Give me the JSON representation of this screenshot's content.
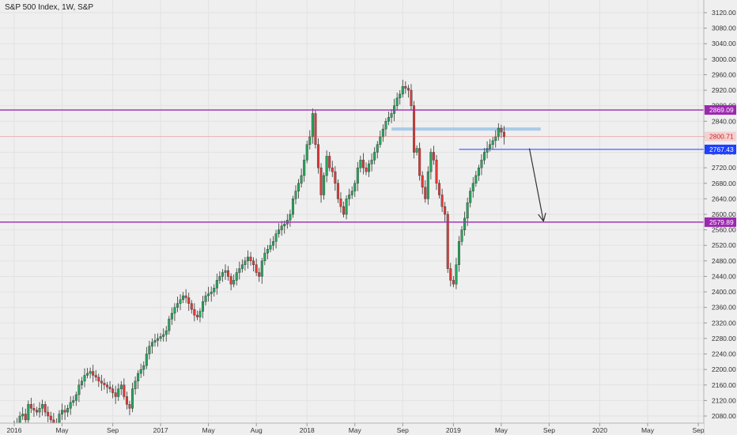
{
  "header": {
    "title": "S&P 500 Index, 1W, S&P"
  },
  "chart_data": {
    "type": "candlestick",
    "title": "S&P 500 Index, 1W, S&P",
    "ylim": [
      2060,
      3140
    ],
    "y_ticks": [
      "3120.00",
      "3080.00",
      "3040.00",
      "3000.00",
      "2960.00",
      "2920.00",
      "2880.00",
      "2840.00",
      "2800.00",
      "2760.00",
      "2720.00",
      "2680.00",
      "2640.00",
      "2600.00",
      "2560.00",
      "2520.00",
      "2480.00",
      "2440.00",
      "2400.00",
      "2360.00",
      "2320.00",
      "2280.00",
      "2240.00",
      "2200.00",
      "2160.00",
      "2120.00",
      "2080.00"
    ],
    "x_ticks": [
      {
        "label": "2016",
        "week": 0
      },
      {
        "label": "May",
        "week": 17
      },
      {
        "label": "Sep",
        "week": 35
      },
      {
        "label": "2017",
        "week": 52
      },
      {
        "label": "May",
        "week": 69
      },
      {
        "label": "Aug",
        "week": 86
      },
      {
        "label": "2018",
        "week": 104
      },
      {
        "label": "May",
        "week": 121
      },
      {
        "label": "Sep",
        "week": 138
      },
      {
        "label": "2019",
        "week": 156
      },
      {
        "label": "May",
        "week": 173
      },
      {
        "label": "Sep",
        "week": 190
      },
      {
        "label": "2020",
        "week": 208
      },
      {
        "label": "May",
        "week": 225
      },
      {
        "label": "Sep",
        "week": 243
      }
    ],
    "close_series": [
      2060,
      2055,
      2080,
      2085,
      2070,
      2110,
      2100,
      2095,
      2090,
      2100,
      2110,
      2090,
      2080,
      2070,
      2060,
      2050,
      2085,
      2095,
      2090,
      2100,
      2115,
      2120,
      2135,
      2160,
      2170,
      2185,
      2190,
      2195,
      2185,
      2180,
      2170,
      2165,
      2160,
      2155,
      2150,
      2140,
      2130,
      2150,
      2160,
      2130,
      2110,
      2100,
      2150,
      2170,
      2190,
      2200,
      2210,
      2240,
      2260,
      2270,
      2275,
      2280,
      2285,
      2290,
      2300,
      2330,
      2345,
      2360,
      2370,
      2380,
      2390,
      2385,
      2370,
      2355,
      2340,
      2335,
      2350,
      2375,
      2390,
      2395,
      2400,
      2410,
      2430,
      2440,
      2450,
      2455,
      2440,
      2420,
      2430,
      2450,
      2460,
      2470,
      2480,
      2490,
      2480,
      2470,
      2450,
      2440,
      2480,
      2500,
      2510,
      2520,
      2530,
      2550,
      2560,
      2570,
      2575,
      2585,
      2600,
      2640,
      2660,
      2680,
      2700,
      2740,
      2780,
      2800,
      2860,
      2780,
      2720,
      2650,
      2700,
      2750,
      2720,
      2710,
      2680,
      2640,
      2620,
      2600,
      2640,
      2650,
      2660,
      2680,
      2720,
      2740,
      2720,
      2710,
      2730,
      2740,
      2760,
      2780,
      2800,
      2820,
      2840,
      2850,
      2860,
      2880,
      2900,
      2910,
      2930,
      2925,
      2920,
      2880,
      2760,
      2770,
      2700,
      2670,
      2640,
      2710,
      2760,
      2740,
      2680,
      2650,
      2620,
      2600,
      2460,
      2430,
      2420,
      2470,
      2530,
      2560,
      2590,
      2630,
      2660,
      2680,
      2700,
      2720,
      2740,
      2760,
      2770,
      2780,
      2790,
      2800,
      2822,
      2812,
      2800
    ],
    "levels": [
      {
        "label": "2869.09",
        "value": 2869.09,
        "color": "#9c27b0"
      },
      {
        "label": "2579.89",
        "value": 2579.89,
        "color": "#9c27b0"
      },
      {
        "label": "2800.71",
        "value": 2800.71,
        "color": "#ef5350"
      },
      {
        "label": "2767.43",
        "value": 2767.43,
        "color": "#1e40ff"
      }
    ],
    "support_band": {
      "value": 2820,
      "color": "#a9cbe8"
    },
    "arrow": {
      "from": [
        183,
        2770
      ],
      "to": [
        188,
        2582
      ]
    },
    "colors": {
      "up": "#26a65b",
      "down": "#e53935",
      "grid": "#e2e2e2",
      "axis_text": "#333333"
    }
  }
}
